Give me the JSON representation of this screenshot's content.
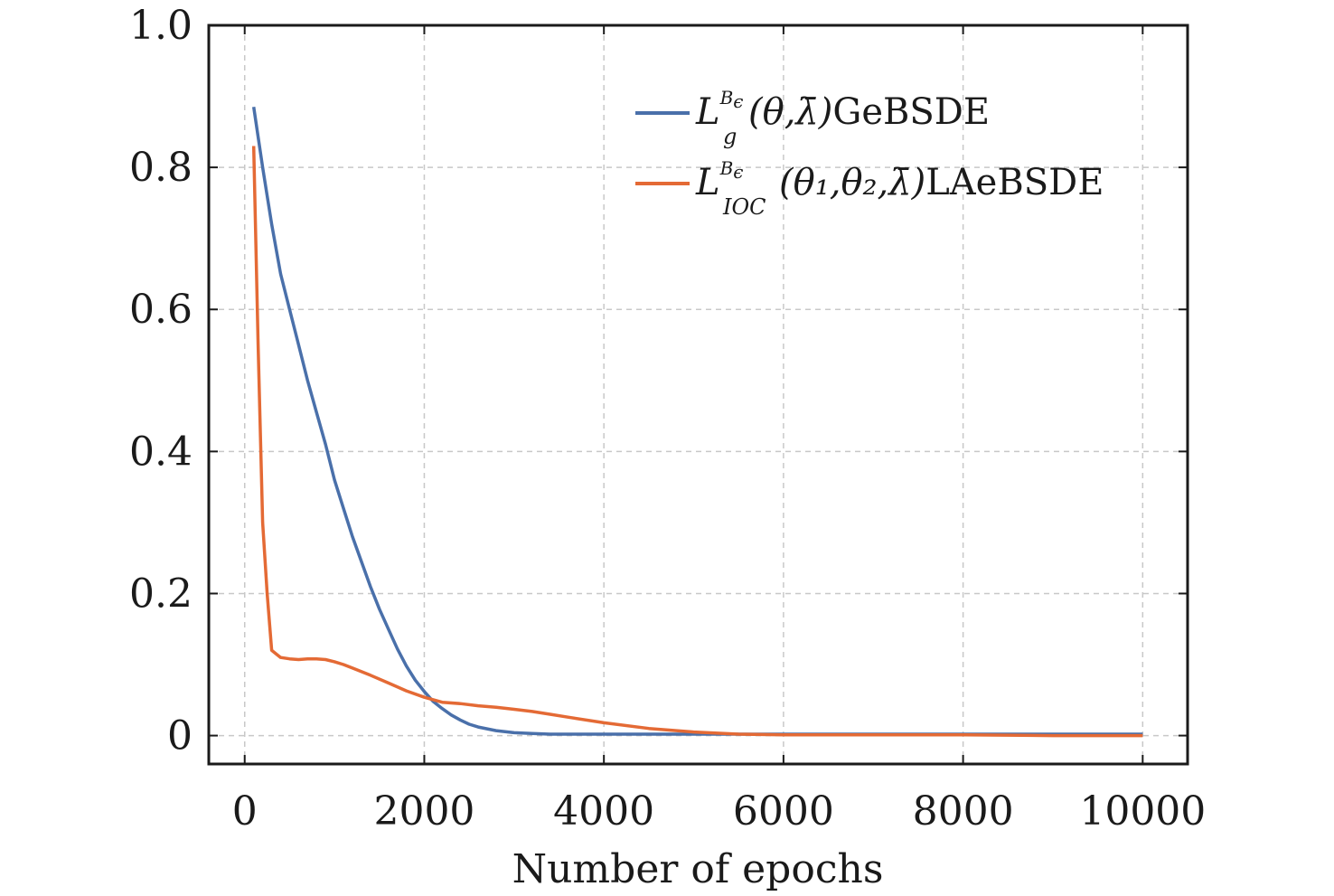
{
  "chart_data": {
    "type": "line",
    "title": "",
    "xlabel": "Number of epochs",
    "ylabel": "",
    "xlim": [
      -400,
      10500
    ],
    "ylim": [
      -0.04,
      1.0
    ],
    "xticks": [
      0,
      2000,
      4000,
      6000,
      8000,
      10000
    ],
    "xtick_labels": [
      "0",
      "2000",
      "4000",
      "6000",
      "8000",
      "10000"
    ],
    "yticks": [
      0,
      0.2,
      0.4,
      0.6,
      0.8,
      1.0
    ],
    "ytick_labels": [
      "0",
      "0.2",
      "0.4",
      "0.6",
      "0.8",
      "1.0"
    ],
    "grid": true,
    "legend_position": "top-right",
    "series": [
      {
        "name": "GeBSDE",
        "legend": {
          "main": "L",
          "sup": "B",
          "sup_sub": "ϵ",
          "sub": "g",
          "args": "(θ,λ̄)",
          "suffix": "GeBSDE"
        },
        "color": "#4a70aa",
        "x": [
          100,
          200,
          300,
          400,
          500,
          600,
          700,
          800,
          900,
          1000,
          1100,
          1200,
          1300,
          1400,
          1500,
          1600,
          1700,
          1800,
          1900,
          2000,
          2100,
          2200,
          2300,
          2400,
          2500,
          2600,
          2800,
          3000,
          3200,
          3400,
          3600,
          4000,
          5000,
          6000,
          7000,
          8000,
          9000,
          10000
        ],
        "y": [
          0.885,
          0.8,
          0.72,
          0.65,
          0.6,
          0.55,
          0.5,
          0.455,
          0.41,
          0.36,
          0.32,
          0.28,
          0.245,
          0.21,
          0.178,
          0.15,
          0.122,
          0.098,
          0.078,
          0.062,
          0.048,
          0.038,
          0.029,
          0.022,
          0.016,
          0.012,
          0.007,
          0.004,
          0.003,
          0.002,
          0.002,
          0.002,
          0.002,
          0.002,
          0.002,
          0.002,
          0.002,
          0.002
        ]
      },
      {
        "name": "LAeBSDE",
        "legend": {
          "main": "L",
          "sup": "B",
          "sup_sub": "ϵ",
          "sub": "IOC",
          "args": "(θ₁,θ₂,λ̄)",
          "suffix": "LAeBSDE"
        },
        "color": "#e46a35",
        "x": [
          100,
          150,
          200,
          250,
          300,
          350,
          400,
          500,
          600,
          700,
          800,
          900,
          1000,
          1100,
          1200,
          1400,
          1600,
          1800,
          2000,
          2200,
          2400,
          2600,
          2800,
          3000,
          3200,
          3400,
          3600,
          4000,
          4500,
          5000,
          5500,
          6000,
          7000,
          8000,
          9000,
          10000
        ],
        "y": [
          0.83,
          0.55,
          0.3,
          0.2,
          0.12,
          0.115,
          0.11,
          0.108,
          0.107,
          0.108,
          0.108,
          0.107,
          0.104,
          0.1,
          0.095,
          0.085,
          0.074,
          0.063,
          0.054,
          0.047,
          0.045,
          0.042,
          0.04,
          0.037,
          0.034,
          0.03,
          0.026,
          0.018,
          0.01,
          0.005,
          0.002,
          0.001,
          0.001,
          0.001,
          0.0,
          0.0
        ]
      }
    ]
  }
}
